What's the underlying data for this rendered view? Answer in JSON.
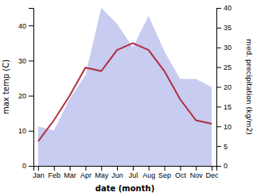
{
  "chart_data": {
    "type": "line",
    "categories": [
      "Jan",
      "Feb",
      "Mar",
      "Apr",
      "May",
      "Jun",
      "Jul",
      "Aug",
      "Sep",
      "Oct",
      "Nov",
      "Dec"
    ],
    "xlabel": "date (month)",
    "ylabel": "max temp (C)",
    "y2label": "med. precipitation (kg/m2)",
    "ylim": [
      0,
      45
    ],
    "yticks": [
      0,
      10,
      20,
      30,
      40
    ],
    "y2lim": [
      0,
      40
    ],
    "y2ticks": [
      0,
      5,
      10,
      15,
      20,
      25,
      30,
      35,
      40
    ],
    "grid": false,
    "series": [
      {
        "type": "area",
        "axis": "y2",
        "color": "#c8ccf0",
        "values": [
          10,
          9,
          17,
          23,
          40,
          36,
          30,
          38,
          29,
          22,
          22,
          20
        ]
      },
      {
        "type": "line",
        "color": "#b03040",
        "values": [
          7,
          13,
          20,
          28,
          27,
          33,
          35,
          33,
          27,
          19,
          13,
          12
        ]
      }
    ]
  }
}
